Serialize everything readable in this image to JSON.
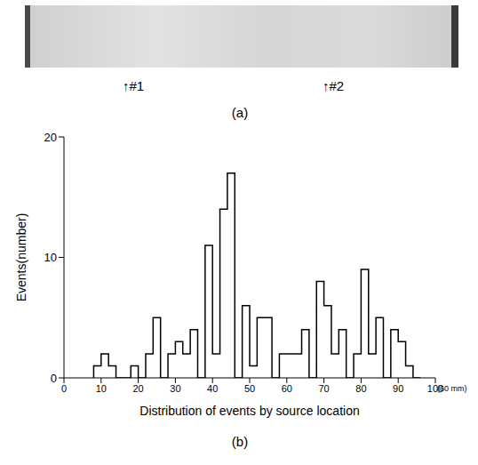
{
  "image_panel": {
    "label": "(a)",
    "markers": [
      "↑#1",
      "↑#2"
    ]
  },
  "chart_data": {
    "type": "histogram",
    "panel_label": "(b)",
    "x_label": "Distribution of events by source location",
    "y_label": "Events(number)",
    "annotation": "(60 mm)",
    "bins": [
      8,
      10,
      12,
      14,
      16,
      18,
      20,
      22,
      24,
      26,
      28,
      30,
      32,
      34,
      36,
      38,
      40,
      42,
      44,
      46,
      48,
      50,
      52,
      54,
      56,
      58,
      60,
      62,
      64,
      66,
      68,
      70,
      72,
      74,
      76,
      78,
      80,
      82,
      84,
      86,
      88,
      90,
      92,
      94,
      96
    ],
    "counts": [
      1,
      2,
      1,
      0,
      0,
      1,
      0,
      2,
      5,
      0,
      2,
      3,
      2,
      4,
      0,
      11,
      2,
      14,
      17,
      0,
      6,
      1,
      5,
      5,
      0,
      2,
      2,
      2,
      4,
      0,
      8,
      6,
      2,
      4,
      0,
      2,
      9,
      2,
      5,
      0,
      4,
      3,
      1,
      0
    ],
    "color": "#000000",
    "xlim": [
      0,
      100
    ],
    "xticks": [
      0,
      10,
      20,
      30,
      40,
      50,
      60,
      70,
      80,
      90,
      100
    ],
    "ylim": [
      0,
      20
    ],
    "yticks": [
      0,
      10,
      20
    ],
    "grid": false
  }
}
